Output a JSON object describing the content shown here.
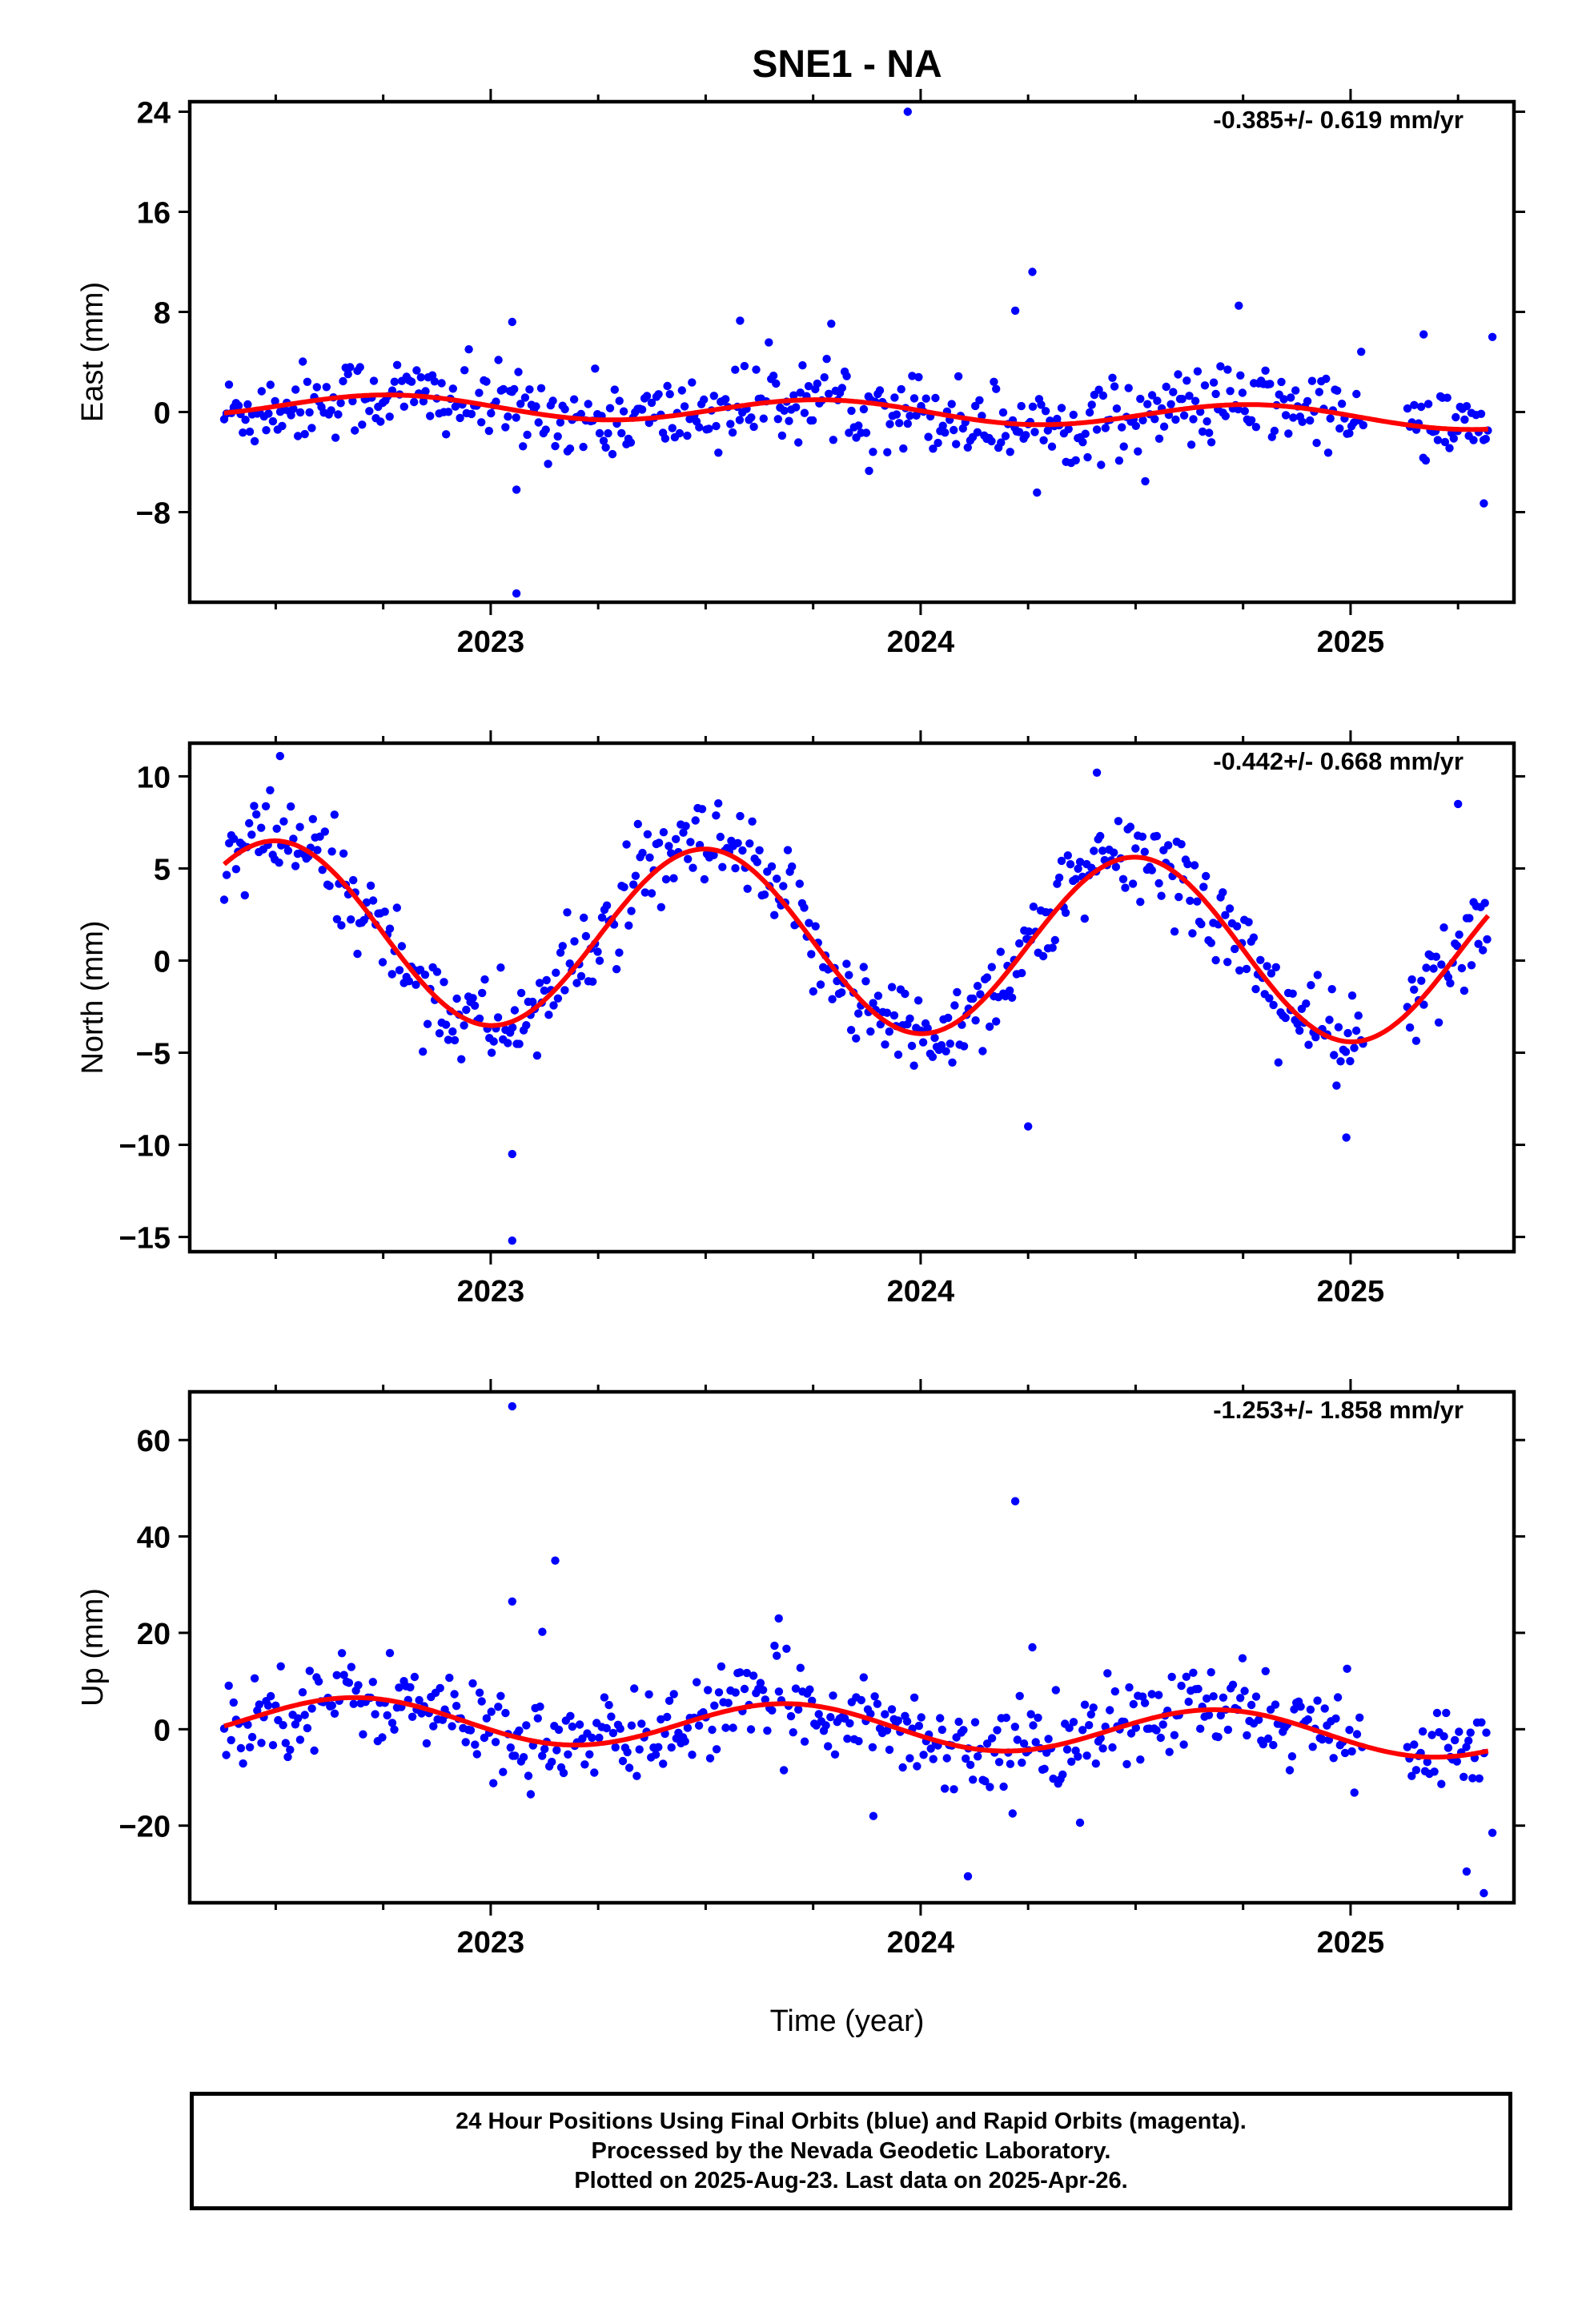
{
  "title": "SNE1 - NA",
  "xlabel": "Time (year)",
  "footer": {
    "line1": "24 Hour Positions Using Final Orbits (blue) and Rapid Orbits (magenta).",
    "line2": "Processed by the Nevada Geodetic Laboratory.",
    "line3": "Plotted on 2025-Aug-23. Last data on 2025-Apr-26."
  },
  "colors": {
    "points": "#0000ff",
    "fit": "#ff0000",
    "frame": "#000000"
  },
  "chart_data": [
    {
      "type": "scatter",
      "name": "east",
      "ylabel": "East (mm)",
      "rate_label": "-0.385+/- 0.619 mm/yr",
      "xlim": [
        2022.3,
        2025.38
      ],
      "ylim": [
        -15.2,
        24.8
      ],
      "yticks": [
        24,
        16,
        8,
        0,
        -8
      ],
      "xticks": [
        2023,
        2024,
        2025
      ],
      "fit": {
        "mean": 0.05,
        "trend": -0.385,
        "t0": 2023.85,
        "amp": 0.9,
        "phase": 2022.52
      },
      "noise": 1.6,
      "outliers": [
        [
          2023.05,
          7.2
        ],
        [
          2023.06,
          -6.2
        ],
        [
          2023.06,
          -14.5
        ],
        [
          2023.58,
          7.3
        ],
        [
          2023.97,
          24.0
        ],
        [
          2024.22,
          8.1
        ],
        [
          2024.26,
          11.2
        ],
        [
          2024.74,
          8.5
        ],
        [
          2025.17,
          6.2
        ],
        [
          2025.33,
          6.0
        ],
        [
          2025.31,
          -7.3
        ],
        [
          2023.88,
          -4.7
        ]
      ],
      "x_first": 2022.38,
      "x_last": 2025.32
    },
    {
      "type": "scatter",
      "name": "north",
      "ylabel": "North (mm)",
      "rate_label": "-0.442+/- 0.668 mm/yr",
      "xlim": [
        2022.3,
        2025.38
      ],
      "ylim": [
        -15.8,
        11.8
      ],
      "yticks": [
        10,
        5,
        0,
        -5,
        -10,
        -15
      ],
      "xticks": [
        2023,
        2024,
        2025
      ],
      "fit": {
        "mean": 1.0,
        "trend": -0.442,
        "t0": 2023.85,
        "amp": 4.9,
        "phase": 2022.25
      },
      "noise": 1.3,
      "outliers": [
        [
          2022.51,
          11.1
        ],
        [
          2023.05,
          -10.5
        ],
        [
          2023.05,
          -15.2
        ],
        [
          2024.41,
          10.2
        ],
        [
          2025.25,
          8.5
        ],
        [
          2024.25,
          -9.0
        ],
        [
          2024.99,
          -9.6
        ]
      ],
      "x_first": 2022.38,
      "x_last": 2025.32
    },
    {
      "type": "scatter",
      "name": "up",
      "ylabel": "Up (mm)",
      "rate_label": "-1.253+/- 1.858 mm/yr",
      "xlim": [
        2022.3,
        2025.38
      ],
      "ylim": [
        -36,
        70
      ],
      "yticks": [
        60,
        40,
        20,
        0,
        -20
      ],
      "xticks": [
        2023,
        2024,
        2025
      ],
      "fit": {
        "mean": 0.5,
        "trend": -1.253,
        "t0": 2023.85,
        "amp": 4.6,
        "phase": 2022.44
      },
      "noise": 4.6,
      "outliers": [
        [
          2023.05,
          67.0
        ],
        [
          2023.15,
          35.0
        ],
        [
          2023.05,
          26.5
        ],
        [
          2023.12,
          20.2
        ],
        [
          2023.67,
          23.0
        ],
        [
          2024.22,
          47.3
        ],
        [
          2024.26,
          17.0
        ],
        [
          2024.11,
          -30.5
        ],
        [
          2023.89,
          -18.0
        ],
        [
          2025.27,
          -29.5
        ],
        [
          2025.31,
          -34.0
        ],
        [
          2025.33,
          -21.5
        ]
      ],
      "x_first": 2022.38,
      "x_last": 2025.32
    }
  ]
}
